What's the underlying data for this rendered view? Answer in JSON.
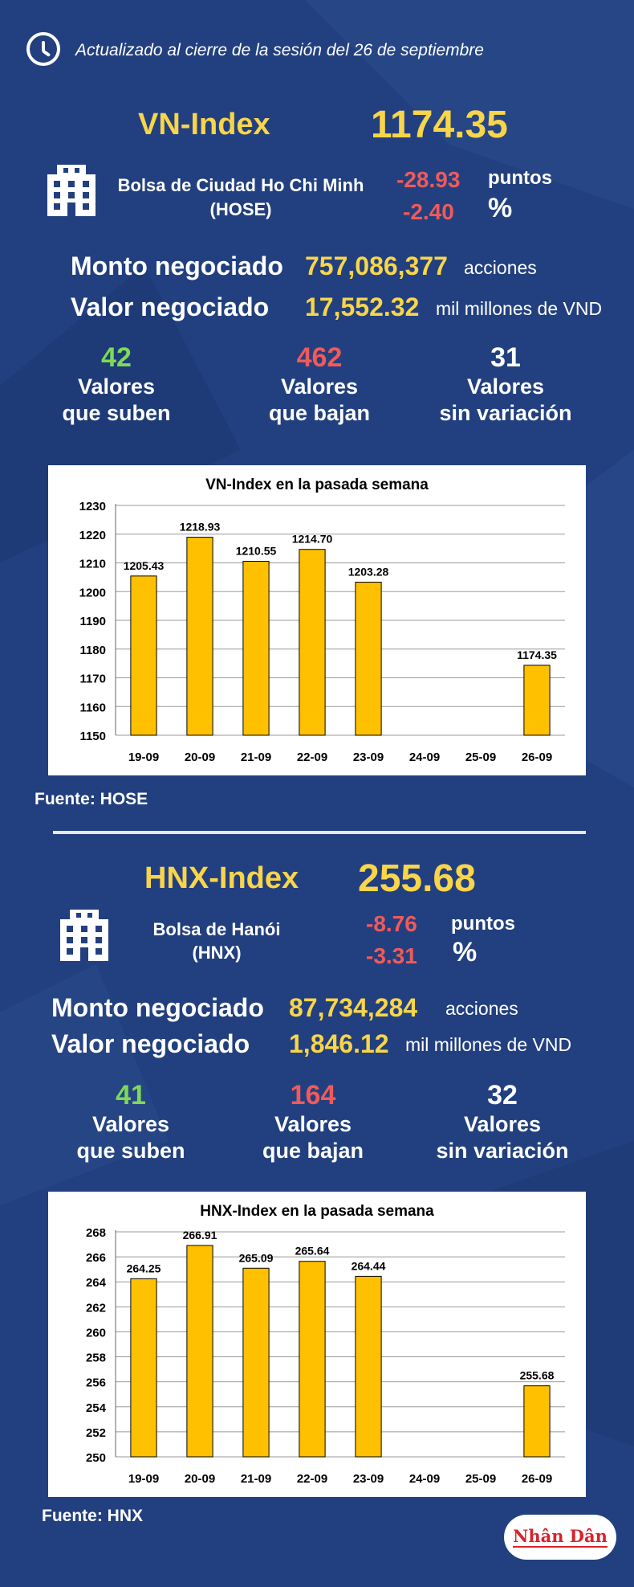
{
  "header": {
    "update_text": "Actualizado al cierre de la sesión del 26 de septiembre"
  },
  "hose": {
    "index_name": "VN-Index",
    "index_value": "1174.35",
    "exchange_name": "Bolsa de Ciudad Ho Chi Minh",
    "exchange_code": "(HOSE)",
    "change_points": "-28.93",
    "points_label": "puntos",
    "change_percent": "-2.40",
    "percent_label": "%",
    "volume_label": "Monto negociado",
    "volume_value": "757,086,377",
    "volume_unit": "acciones",
    "value_label": "Valor negociado",
    "value_value": "17,552.32",
    "value_unit": "mil millones de VND",
    "up_count": "42",
    "up_label_1": "Valores",
    "up_label_2": "que suben",
    "down_count": "462",
    "down_label_1": "Valores",
    "down_label_2": "que bajan",
    "flat_count": "31",
    "flat_label_1": "Valores",
    "flat_label_2": "sin variación",
    "source": "Fuente: HOSE"
  },
  "hnx": {
    "index_name": "HNX-Index",
    "index_value": "255.68",
    "exchange_name": "Bolsa de Hanói",
    "exchange_code": "(HNX)",
    "change_points": "-8.76",
    "points_label": "puntos",
    "change_percent": "-3.31",
    "percent_label": "%",
    "volume_label": "Monto negociado",
    "volume_value": "87,734,284",
    "volume_unit": "acciones",
    "value_label": "Valor negociado",
    "value_value": "1,846.12",
    "value_unit": "mil millones de VND",
    "up_count": "41",
    "up_label_1": "Valores",
    "up_label_2": "que suben",
    "down_count": "164",
    "down_label_1": "Valores",
    "down_label_2": "que bajan",
    "flat_count": "32",
    "flat_label_1": "Valores",
    "flat_label_2": "sin variación",
    "source": "Fuente:  HNX"
  },
  "colors": {
    "background": "#22407f",
    "accent_yellow": "#f9d54a",
    "negative_red": "#f05a5a",
    "positive_green": "#7ed957",
    "bar_fill": "#ffc000"
  },
  "icons": {
    "clock": "clock-icon",
    "building": "building-icon"
  },
  "logo_text": "Nhân Dân",
  "chart_data": [
    {
      "type": "bar",
      "title": "VN-Index en la pasada semana",
      "categories": [
        "19-09",
        "20-09",
        "21-09",
        "22-09",
        "23-09",
        "24-09",
        "25-09",
        "26-09"
      ],
      "values": [
        1205.43,
        1218.93,
        1210.55,
        1214.7,
        1203.28,
        null,
        null,
        1174.35
      ],
      "labels": [
        "1205.43",
        "1218.93",
        "1210.55",
        "1214.70",
        "1203.28",
        "",
        "",
        "1174.35"
      ],
      "ylim": [
        1150,
        1230
      ],
      "yticks": [
        1150,
        1160,
        1170,
        1180,
        1190,
        1200,
        1210,
        1220,
        1230
      ],
      "xlabel": "",
      "ylabel": "",
      "grid": true,
      "legend": "none"
    },
    {
      "type": "bar",
      "title": "HNX-Index en la pasada semana",
      "categories": [
        "19-09",
        "20-09",
        "21-09",
        "22-09",
        "23-09",
        "24-09",
        "25-09",
        "26-09"
      ],
      "values": [
        264.25,
        266.91,
        265.09,
        265.64,
        264.44,
        null,
        null,
        255.68
      ],
      "labels": [
        "264.25",
        "266.91",
        "265.09",
        "265.64",
        "264.44",
        "",
        "",
        "255.68"
      ],
      "ylim": [
        250,
        268
      ],
      "yticks": [
        250,
        252,
        254,
        256,
        258,
        260,
        262,
        264,
        266,
        268
      ],
      "xlabel": "",
      "ylabel": "",
      "grid": true,
      "legend": "none"
    }
  ]
}
